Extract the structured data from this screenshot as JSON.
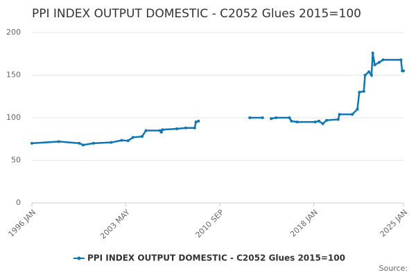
{
  "chart_data": {
    "type": "line",
    "title": "PPI INDEX OUTPUT DOMESTIC - C2052 Glues 2015=100",
    "source": "Source:",
    "x": [
      1996.0,
      1998.1,
      1999.7,
      2000.0,
      2000.8,
      2002.2,
      2003.0,
      2003.5,
      2003.9,
      2004.6,
      2004.9,
      2006.0,
      2006.1,
      2006.2,
      2007.3,
      2008.0,
      2008.7,
      2008.8,
      2009.0,
      2011.0,
      2013.0,
      2014.0,
      2014.3,
      2014.67,
      2015.05,
      2016.1,
      2016.25,
      2016.7,
      2018.1,
      2018.4,
      2018.7,
      2019.0,
      2019.9,
      2020.0,
      2021.0,
      2021.4,
      2021.55,
      2021.9,
      2022.0,
      2022.3,
      2022.5,
      2022.6,
      2022.75,
      2023.1,
      2023.4,
      2024.8,
      2024.9,
      2025.0
    ],
    "series": [
      {
        "name": "PPI INDEX OUTPUT DOMESTIC - C2052 Glues 2015=100",
        "color": "#0a77b8",
        "values": [
          70,
          72,
          70,
          68,
          70,
          71,
          73.5,
          73,
          77,
          78,
          85,
          85,
          83,
          86,
          87,
          88,
          88,
          95,
          96,
          null,
          100,
          100,
          null,
          99,
          100,
          100,
          96,
          95,
          95,
          96,
          93,
          97,
          98,
          104,
          104,
          110,
          130,
          131,
          150,
          154,
          150,
          176,
          162,
          165,
          168,
          168,
          155,
          155
        ]
      }
    ],
    "xlim": [
      1996.0,
      2025.0
    ],
    "xticks": [
      {
        "value": 1996.0,
        "label": "1996 JAN"
      },
      {
        "value": 2003.33,
        "label": "2003 MAY"
      },
      {
        "value": 2010.67,
        "label": "2010 SEP"
      },
      {
        "value": 2018.0,
        "label": "2018 JAN"
      },
      {
        "value": 2025.0,
        "label": "2025 JAN"
      }
    ],
    "ylim": [
      0,
      200
    ],
    "yticks": [
      0,
      50,
      100,
      150,
      200
    ],
    "grid": true
  }
}
